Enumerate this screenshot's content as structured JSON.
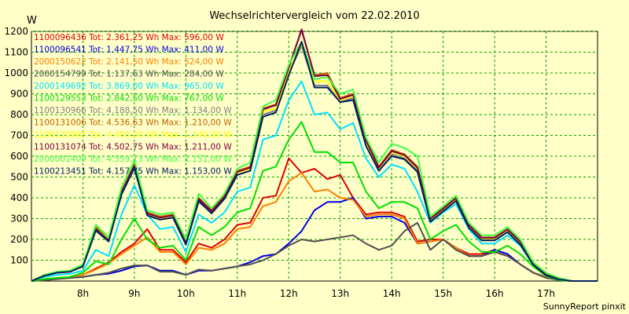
{
  "chart_data": {
    "type": "line",
    "title": "Wechselrichtervergleich vom 22.02.2010",
    "ylabel": "W",
    "xlabel": "",
    "ylim": [
      0,
      1200
    ],
    "xlim": [
      7.0,
      18.0
    ],
    "grid": true,
    "legend_placement": "top-left",
    "footer": "SunnyReport pinxit",
    "yticks": [
      "100",
      "200",
      "300",
      "400",
      "500",
      "600",
      "700",
      "800",
      "900",
      "1000",
      "1100",
      "1200"
    ],
    "xticks": [
      {
        "x": 8,
        "label": "8h"
      },
      {
        "x": 9,
        "label": "9h"
      },
      {
        "x": 10,
        "label": "10h"
      },
      {
        "x": 11,
        "label": "11h"
      },
      {
        "x": 12,
        "label": "12h"
      },
      {
        "x": 13,
        "label": "13h"
      },
      {
        "x": 14,
        "label": "14h"
      },
      {
        "x": 15,
        "label": "15h"
      },
      {
        "x": 16,
        "label": "16h"
      },
      {
        "x": 17,
        "label": "17h"
      }
    ],
    "x": [
      7.0,
      7.25,
      7.5,
      7.75,
      8.0,
      8.25,
      8.5,
      8.75,
      9.0,
      9.25,
      9.5,
      9.75,
      10.0,
      10.25,
      10.5,
      10.75,
      11.0,
      11.25,
      11.5,
      11.75,
      12.0,
      12.25,
      12.5,
      12.75,
      13.0,
      13.25,
      13.5,
      13.75,
      14.0,
      14.25,
      14.5,
      14.75,
      15.0,
      15.25,
      15.5,
      15.75,
      16.0,
      16.25,
      16.5,
      16.75,
      17.0,
      17.25,
      17.5,
      17.75,
      18.0
    ],
    "series": [
      {
        "name": "1100096436 Tot: 2.361,25 Wh Max: 596,00 W",
        "color": "#e00000",
        "values": [
          0,
          5,
          10,
          15,
          30,
          60,
          90,
          140,
          180,
          250,
          150,
          150,
          90,
          180,
          160,
          200,
          270,
          280,
          400,
          410,
          590,
          520,
          540,
          490,
          510,
          400,
          320,
          330,
          330,
          310,
          190,
          200,
          200,
          160,
          130,
          130,
          150,
          130,
          80,
          40,
          20,
          10,
          0,
          0,
          0
        ]
      },
      {
        "name": "1100096541 Tot: 1.447,75 Wh Max: 411,00 W",
        "color": "#0000e0",
        "values": [
          0,
          5,
          10,
          15,
          20,
          30,
          35,
          50,
          70,
          75,
          50,
          50,
          30,
          50,
          50,
          60,
          70,
          90,
          120,
          130,
          180,
          240,
          340,
          380,
          380,
          400,
          300,
          310,
          310,
          280,
          180,
          190,
          200,
          160,
          120,
          120,
          150,
          130,
          80,
          40,
          20,
          5,
          0,
          0,
          0
        ]
      },
      {
        "name": "2000150622 Tot: 2.141,50 Wh Max: 524,00 W",
        "color": "#ff8000",
        "values": [
          0,
          5,
          10,
          15,
          30,
          55,
          85,
          130,
          170,
          210,
          140,
          140,
          80,
          160,
          150,
          180,
          250,
          260,
          360,
          380,
          480,
          520,
          430,
          440,
          400,
          390,
          310,
          320,
          320,
          300,
          180,
          190,
          200,
          160,
          120,
          120,
          140,
          120,
          80,
          40,
          20,
          5,
          0,
          0,
          0
        ]
      },
      {
        "name": "2000154799 Tot: 1.137,63 Wh Max: 284,00 W",
        "color": "#505050",
        "values": [
          0,
          5,
          10,
          15,
          20,
          30,
          40,
          60,
          75,
          75,
          45,
          45,
          30,
          55,
          50,
          60,
          70,
          80,
          100,
          130,
          170,
          200,
          190,
          200,
          210,
          220,
          180,
          150,
          170,
          240,
          280,
          150,
          200,
          150,
          120,
          120,
          140,
          120,
          80,
          40,
          15,
          5,
          0,
          0,
          0
        ]
      },
      {
        "name": "2000149692 Tot: 3.869,00 Wh Max: 965,00 W",
        "color": "#00e0ff",
        "values": [
          0,
          20,
          30,
          35,
          50,
          150,
          120,
          320,
          460,
          320,
          250,
          260,
          140,
          320,
          280,
          330,
          430,
          450,
          680,
          700,
          870,
          960,
          800,
          810,
          730,
          760,
          590,
          500,
          560,
          540,
          430,
          280,
          330,
          370,
          250,
          180,
          180,
          220,
          170,
          80,
          30,
          10,
          0,
          0,
          0
        ]
      },
      {
        "name": "1100129553 Tot: 2.842,50 Wh Max: 767,00 W",
        "color": "#00e000",
        "values": [
          0,
          10,
          15,
          20,
          40,
          95,
          80,
          200,
          300,
          200,
          160,
          170,
          100,
          260,
          220,
          260,
          330,
          350,
          530,
          550,
          680,
          765,
          620,
          620,
          570,
          570,
          430,
          350,
          380,
          380,
          350,
          200,
          240,
          270,
          190,
          140,
          140,
          170,
          130,
          70,
          25,
          5,
          0,
          0,
          0
        ]
      },
      {
        "name": "1100130966 Tot: 4.188,50 Wh Max: 1.134,00 W",
        "color": "#808080",
        "values": [
          0,
          25,
          40,
          45,
          70,
          240,
          190,
          420,
          540,
          320,
          300,
          310,
          180,
          380,
          330,
          400,
          510,
          530,
          800,
          820,
          1000,
          1130,
          940,
          940,
          860,
          880,
          650,
          530,
          610,
          590,
          530,
          290,
          340,
          390,
          260,
          200,
          200,
          240,
          180,
          80,
          30,
          10,
          0,
          0,
          0
        ]
      },
      {
        "name": "1100131006 Tot: 4.536,63 Wh Max: 1.210,00 W",
        "color": "#c06000",
        "values": [
          0,
          30,
          40,
          45,
          75,
          260,
          200,
          430,
          560,
          330,
          310,
          320,
          190,
          400,
          340,
          410,
          530,
          550,
          830,
          850,
          1030,
          1205,
          990,
          1000,
          880,
          900,
          680,
          550,
          630,
          610,
          550,
          300,
          350,
          400,
          270,
          210,
          210,
          250,
          190,
          80,
          30,
          10,
          0,
          0,
          0
        ]
      },
      {
        "name": "1100130985 Tot: 4.400,00 Wh Max: 1.140,00 W",
        "color": "#ffff00",
        "values": [
          0,
          25,
          40,
          45,
          70,
          250,
          200,
          420,
          550,
          320,
          300,
          310,
          180,
          390,
          330,
          405,
          520,
          540,
          815,
          830,
          1010,
          1140,
          960,
          960,
          870,
          890,
          660,
          540,
          620,
          600,
          540,
          295,
          345,
          395,
          265,
          205,
          205,
          245,
          185,
          80,
          30,
          10,
          0,
          0,
          0
        ]
      },
      {
        "name": "1100131074 Tot: 4.502,75 Wh Max: 1.211,00 W",
        "color": "#800040",
        "values": [
          0,
          30,
          40,
          45,
          75,
          250,
          195,
          425,
          555,
          325,
          305,
          315,
          185,
          395,
          335,
          405,
          525,
          545,
          825,
          845,
          1025,
          1210,
          985,
          990,
          875,
          895,
          675,
          545,
          625,
          605,
          545,
          298,
          348,
          398,
          268,
          208,
          208,
          248,
          188,
          80,
          30,
          10,
          0,
          0,
          0
        ]
      },
      {
        "name": "2000001409 Tot: 4.559,13 Wh Max: 1.151,00 W",
        "color": "#40ff40",
        "values": [
          0,
          30,
          45,
          50,
          80,
          270,
          210,
          450,
          580,
          340,
          320,
          330,
          200,
          420,
          350,
          420,
          540,
          570,
          840,
          870,
          1040,
          1150,
          970,
          980,
          900,
          920,
          690,
          570,
          660,
          640,
          600,
          310,
          360,
          410,
          280,
          220,
          220,
          260,
          200,
          90,
          40,
          15,
          0,
          0,
          0
        ]
      },
      {
        "name": "1100213451 Tot: 4.157,75 Wh Max: 1.153,00 W",
        "color": "#002060",
        "values": [
          0,
          25,
          40,
          45,
          70,
          245,
          190,
          415,
          545,
          315,
          295,
          305,
          175,
          385,
          325,
          395,
          510,
          530,
          790,
          810,
          990,
          1150,
          930,
          930,
          860,
          870,
          650,
          530,
          600,
          585,
          525,
          285,
          335,
          385,
          255,
          195,
          195,
          235,
          175,
          78,
          28,
          8,
          0,
          0,
          0
        ]
      }
    ]
  }
}
